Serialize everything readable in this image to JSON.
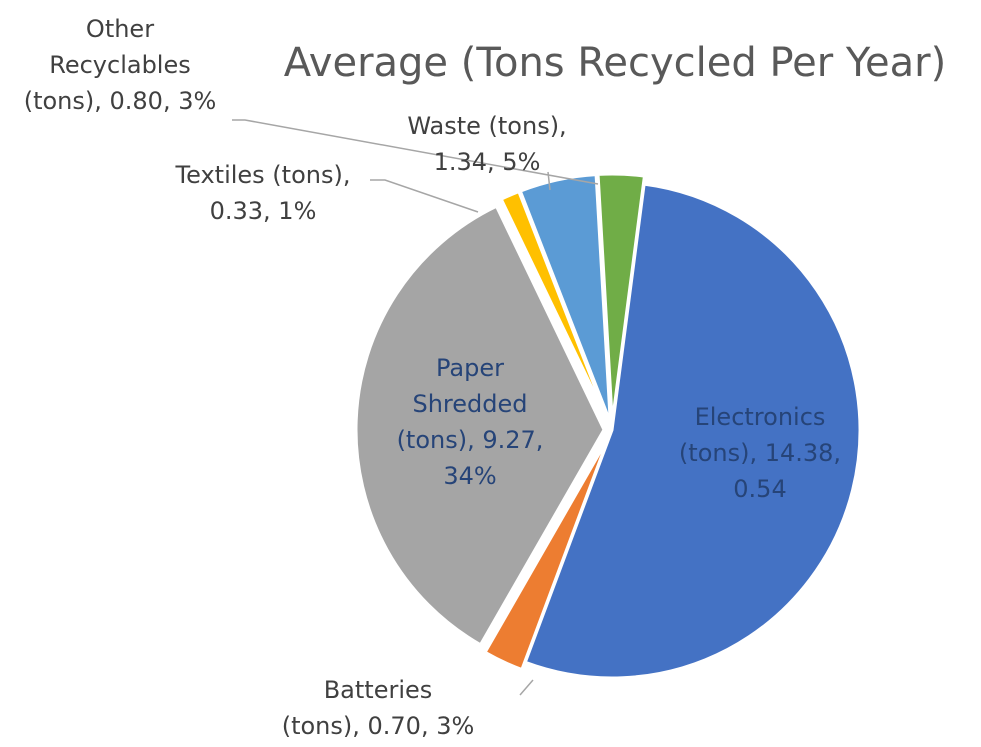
{
  "chart_data": {
    "type": "pie",
    "title": "Average (Tons Recycled Per Year)",
    "slices": [
      {
        "category": "Electronics (tons)",
        "value": 14.38,
        "percent_label": "0.54",
        "color": "#4472C4",
        "label_lines": [
          "Electronics",
          "(tons), 14.38,",
          "0.54"
        ]
      },
      {
        "category": "Batteries (tons)",
        "value": 0.7,
        "percent_label": "3%",
        "color": "#ED7D31",
        "label_lines": [
          "Batteries",
          "(tons), 0.70, 3%"
        ]
      },
      {
        "category": "Paper Shredded (tons)",
        "value": 9.27,
        "percent_label": "34%",
        "color": "#A5A5A5",
        "label_lines": [
          "Paper",
          "Shredded",
          "(tons), 9.27,",
          "34%"
        ]
      },
      {
        "category": "Textiles (tons)",
        "value": 0.33,
        "percent_label": "1%",
        "color": "#FFC000",
        "label_lines": [
          "Textiles (tons),",
          "0.33, 1%"
        ]
      },
      {
        "category": "Waste (tons)",
        "value": 1.34,
        "percent_label": "5%",
        "color": "#5B9BD5",
        "label_lines": [
          "Waste (tons),",
          "1.34, 5%"
        ]
      },
      {
        "category": "Other Recyclables (tons)",
        "value": 0.8,
        "percent_label": "3%",
        "color": "#70AD47",
        "label_lines": [
          "Other",
          "Recyclables",
          "(tons), 0.80, 3%"
        ]
      }
    ],
    "legend": "none",
    "label_color": "#404040",
    "inside_label_color": "#264478",
    "leader_color": "#A6A6A6"
  }
}
